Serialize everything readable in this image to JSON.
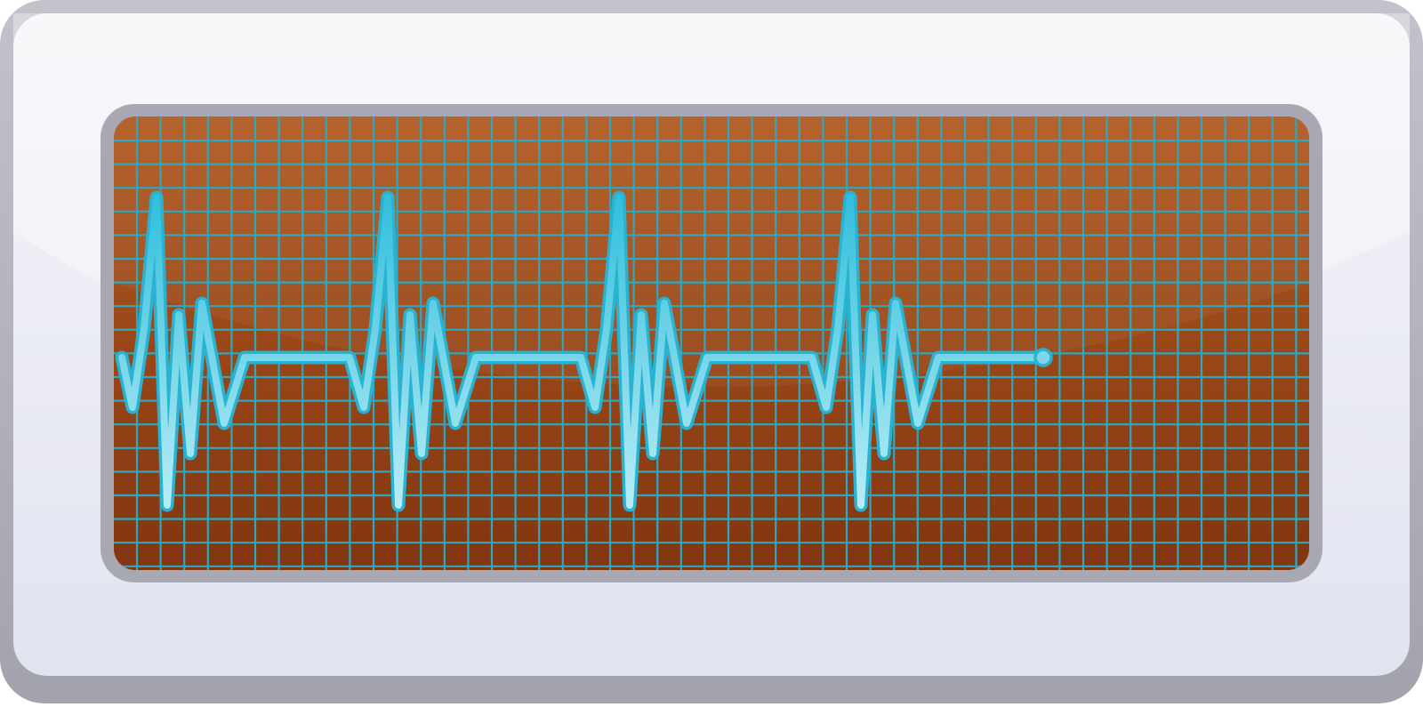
{
  "monitor": {
    "bezel_colors": {
      "top": "#f4f4f8",
      "bottom": "#e1e3f0",
      "rim": "#b4b4be"
    },
    "screen_colors": {
      "top": "#b25a22",
      "bottom": "#82350f",
      "frame": "#a8a8b2"
    },
    "grid_color": "#2aa9c0",
    "waveform": {
      "color": "#7fd6ea",
      "outline": "#29b3d1",
      "beats": 4,
      "end_marker": "dot"
    }
  }
}
